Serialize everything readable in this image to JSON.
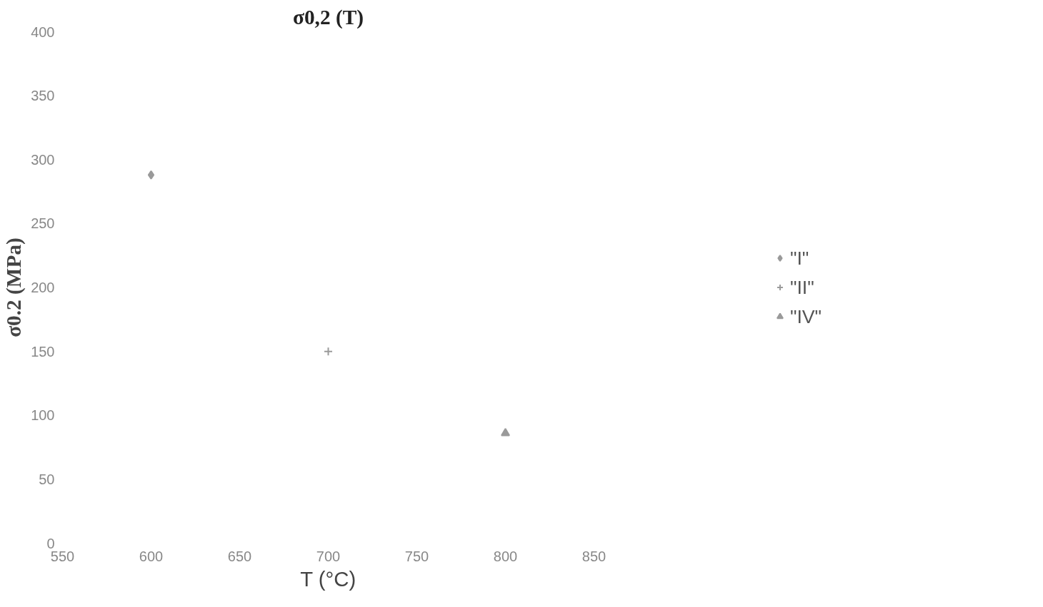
{
  "chart_data": {
    "type": "scatter",
    "title": "σ0,2 (T)",
    "xlabel": "T (°C)",
    "ylabel": "σ0.2 (MPa)",
    "x": [
      600,
      700,
      800
    ],
    "series": [
      {
        "name": "\"I\"",
        "color": "#9a9a9a",
        "marker": "diamond",
        "values": [
          288,
          null,
          null
        ]
      },
      {
        "name": "\"II\"",
        "color": "#9a9a9a",
        "marker": "cross",
        "values": [
          null,
          150,
          null
        ]
      },
      {
        "name": "\"IV\"",
        "color": "#9a9a9a",
        "marker": "triangle",
        "values": [
          null,
          null,
          86
        ]
      }
    ],
    "xlim": [
      550,
      850
    ],
    "xticks": [
      550,
      600,
      650,
      700,
      750,
      800,
      850
    ],
    "ylim": [
      0,
      400
    ],
    "yticks": [
      0,
      50,
      100,
      150,
      200,
      250,
      300,
      350,
      400
    ],
    "grid": false,
    "legend": "right"
  }
}
